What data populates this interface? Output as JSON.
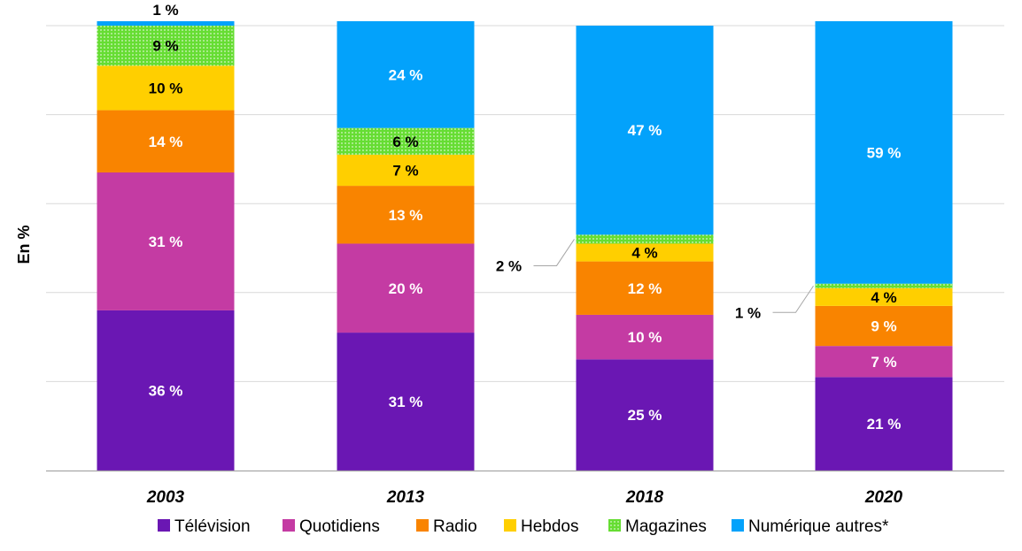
{
  "chart_data": {
    "type": "bar",
    "stacked": true,
    "ylabel": "En %",
    "ylim": [
      0,
      100
    ],
    "grid": true,
    "legend_position": "bottom",
    "categories": [
      "2003",
      "2013",
      "2018",
      "2020"
    ],
    "series": [
      {
        "name": "Télévision",
        "color": "#6a17b3",
        "values": [
          36,
          31,
          25,
          21
        ],
        "labels": [
          "36 %",
          "31 %",
          "25 %",
          "21 %"
        ]
      },
      {
        "name": "Quotidiens",
        "color": "#c43ba3",
        "values": [
          31,
          20,
          10,
          7
        ],
        "labels": [
          "31 %",
          "20 %",
          "10 %",
          "7 %"
        ]
      },
      {
        "name": "Radio",
        "color": "#f98400",
        "values": [
          14,
          13,
          12,
          9
        ],
        "labels": [
          "14 %",
          "13 %",
          "12 %",
          "9 %"
        ]
      },
      {
        "name": "Hebdos",
        "color": "#ffcf00",
        "values": [
          10,
          7,
          4,
          4
        ],
        "labels": [
          "10 %",
          "7 %",
          "4 %",
          "4 %"
        ]
      },
      {
        "name": "Magazines",
        "color": "#66dd33",
        "pattern": "dotted",
        "values": [
          9,
          6,
          2,
          1
        ],
        "labels": [
          "9 %",
          "6 %",
          "2 %",
          "1 %"
        ]
      },
      {
        "name": "Numérique autres*",
        "color": "#03a2fb",
        "values": [
          1,
          24,
          47,
          59
        ],
        "labels": [
          "1 %",
          "24 %",
          "47 %",
          "59 %"
        ]
      }
    ]
  }
}
